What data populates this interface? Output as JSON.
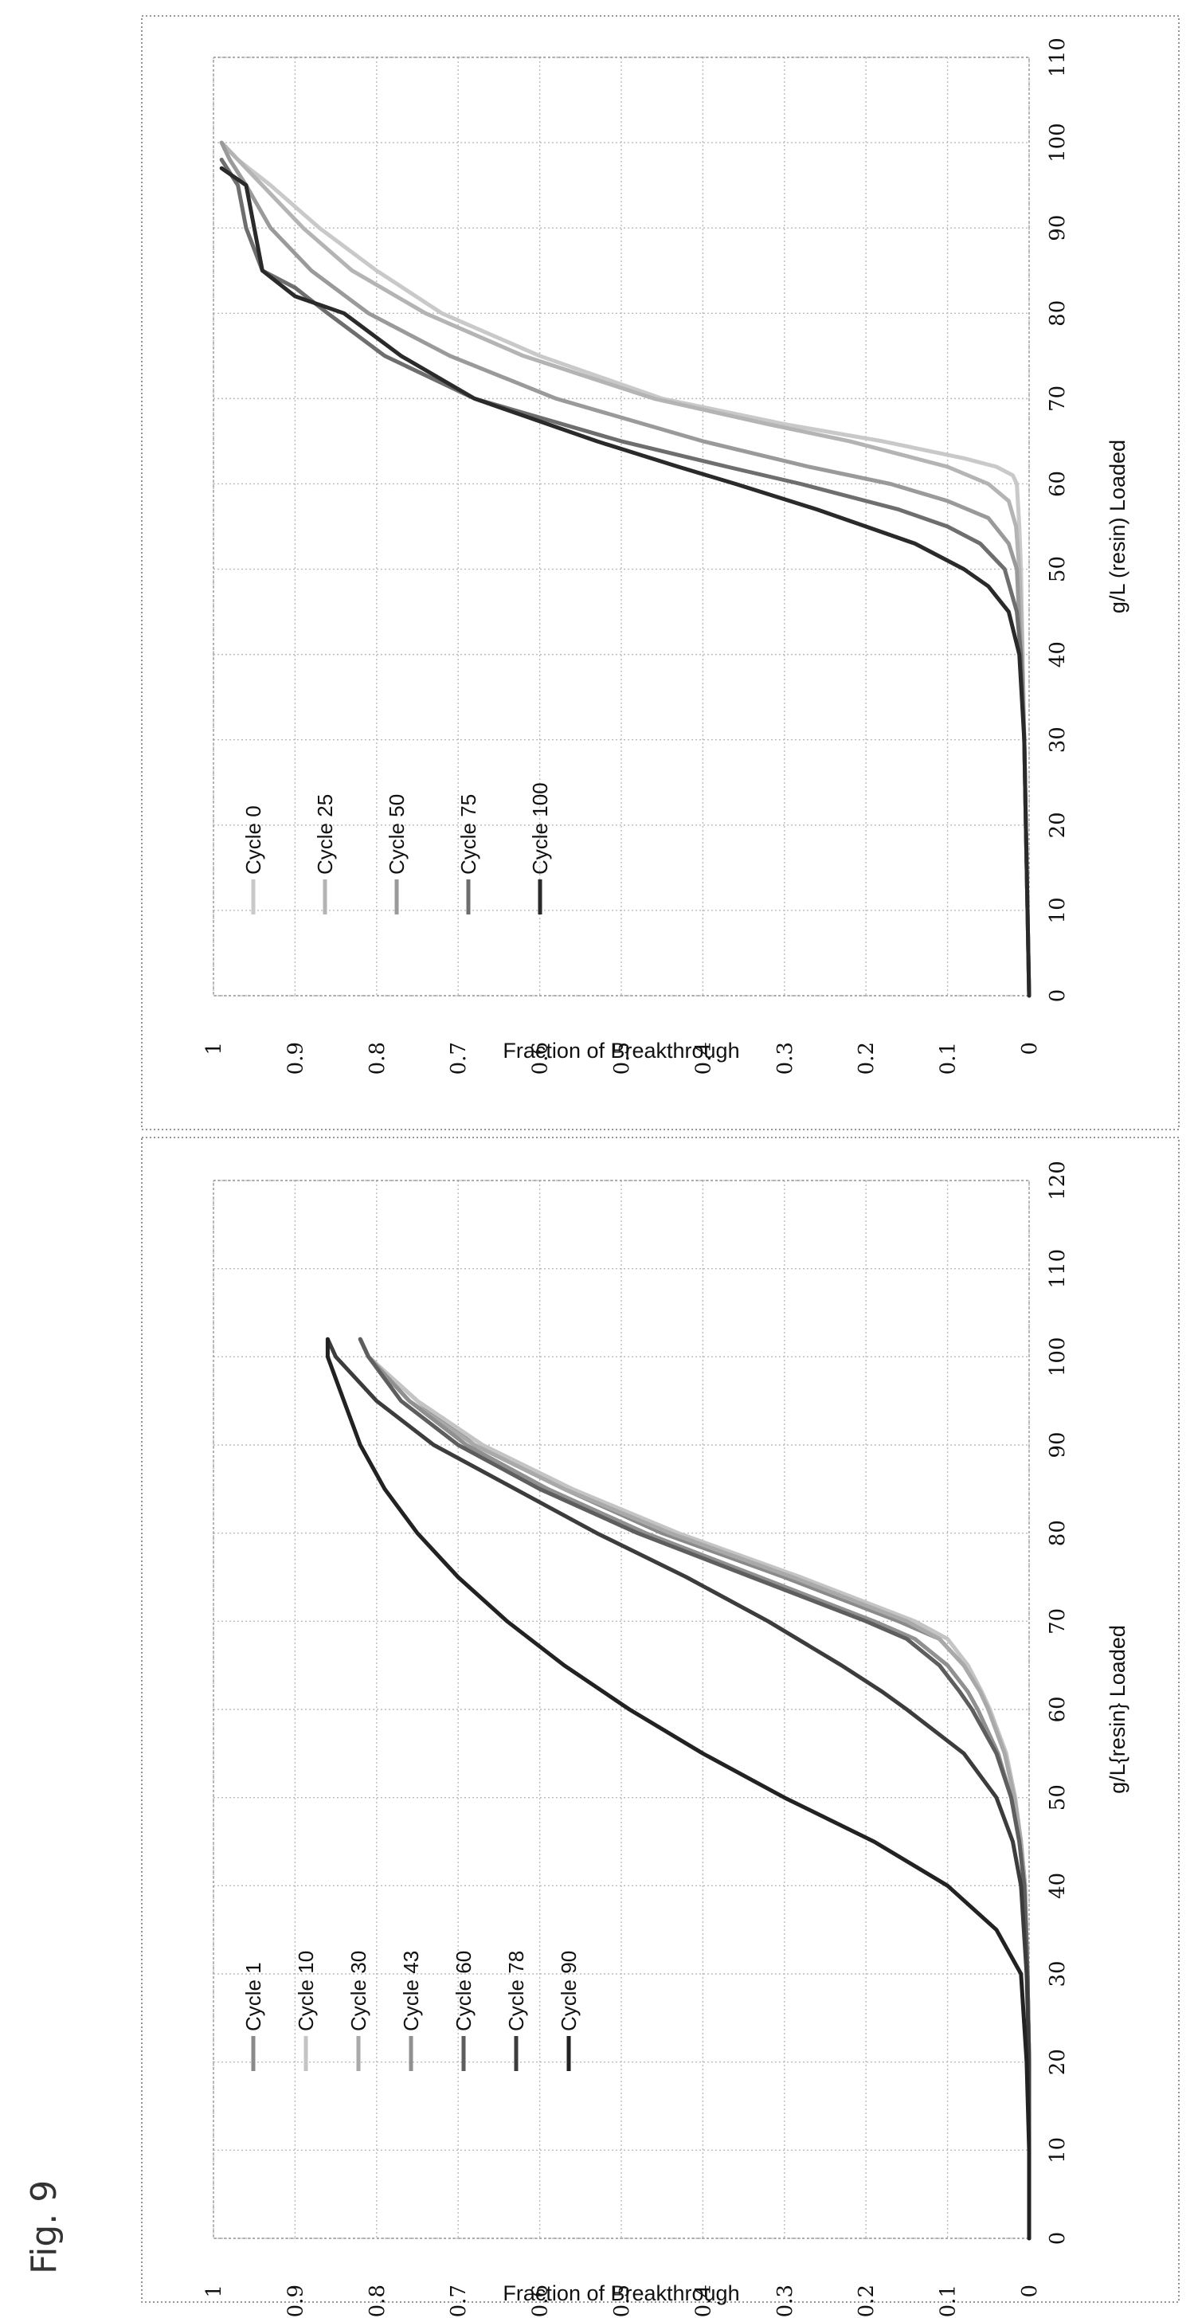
{
  "figure_label": "Fig. 9",
  "chart_data": [
    {
      "type": "line",
      "title": "",
      "xlabel": "g/L{resin} Loaded",
      "ylabel": "Fraction of Breakthrough",
      "xlim": [
        0,
        120
      ],
      "ylim": [
        0,
        1
      ],
      "x_ticks": [
        "0",
        "10",
        "20",
        "30",
        "40",
        "50",
        "60",
        "70",
        "80",
        "90",
        "100",
        "110",
        "120"
      ],
      "y_ticks": [
        "0",
        "0.1",
        "0.2",
        "0.3",
        "0.4",
        "0.5",
        "0.6",
        "0.7",
        "0.8",
        "0.9",
        "1"
      ],
      "grid": true,
      "legend_position": "top-left",
      "series": [
        {
          "name": "Cycle 1",
          "color": "#8a8a8a",
          "width": 5,
          "x": [
            0,
            10,
            20,
            30,
            40,
            45,
            50,
            55,
            60,
            62,
            65,
            68,
            70,
            75,
            80,
            85,
            90,
            95,
            100,
            102
          ],
          "y": [
            0,
            0,
            0,
            0.002,
            0.005,
            0.01,
            0.018,
            0.03,
            0.05,
            0.06,
            0.08,
            0.11,
            0.16,
            0.3,
            0.45,
            0.57,
            0.68,
            0.75,
            0.81,
            0.82
          ]
        },
        {
          "name": "Cycle 10",
          "color": "#c4c4c4",
          "width": 5,
          "x": [
            0,
            10,
            20,
            30,
            40,
            45,
            50,
            55,
            60,
            62,
            65,
            68,
            70,
            75,
            80,
            85,
            90,
            95,
            100,
            102
          ],
          "y": [
            0,
            0,
            0,
            0.002,
            0.005,
            0.01,
            0.017,
            0.028,
            0.048,
            0.058,
            0.075,
            0.1,
            0.14,
            0.28,
            0.43,
            0.56,
            0.67,
            0.75,
            0.81,
            0.82
          ]
        },
        {
          "name": "Cycle 30",
          "color": "#a9a9a9",
          "width": 5,
          "x": [
            0,
            10,
            20,
            30,
            40,
            45,
            50,
            55,
            60,
            62,
            65,
            68,
            70,
            75,
            80,
            85,
            90,
            95,
            100,
            102
          ],
          "y": [
            0,
            0,
            0,
            0.002,
            0.005,
            0.01,
            0.018,
            0.03,
            0.05,
            0.06,
            0.08,
            0.11,
            0.15,
            0.29,
            0.44,
            0.57,
            0.68,
            0.76,
            0.81,
            0.82
          ]
        },
        {
          "name": "Cycle 43",
          "color": "#909090",
          "width": 5,
          "x": [
            0,
            10,
            20,
            30,
            40,
            45,
            50,
            55,
            60,
            62,
            65,
            68,
            70,
            75,
            80,
            85,
            90,
            95,
            100,
            102
          ],
          "y": [
            0,
            0,
            0,
            0.002,
            0.006,
            0.012,
            0.022,
            0.038,
            0.063,
            0.075,
            0.1,
            0.14,
            0.19,
            0.33,
            0.47,
            0.59,
            0.69,
            0.76,
            0.81,
            0.82
          ]
        },
        {
          "name": "Cycle 60",
          "color": "#5e5e5e",
          "width": 5,
          "x": [
            0,
            10,
            20,
            30,
            40,
            45,
            50,
            55,
            60,
            62,
            65,
            68,
            70,
            75,
            80,
            85,
            90,
            95,
            100,
            102
          ],
          "y": [
            0,
            0,
            0,
            0.002,
            0.006,
            0.012,
            0.022,
            0.04,
            0.07,
            0.085,
            0.11,
            0.15,
            0.2,
            0.34,
            0.48,
            0.6,
            0.7,
            0.77,
            0.81,
            0.82
          ]
        },
        {
          "name": "Cycle 78",
          "color": "#3c3c3c",
          "width": 5,
          "x": [
            0,
            10,
            20,
            30,
            40,
            45,
            50,
            55,
            60,
            62,
            65,
            70,
            75,
            80,
            85,
            90,
            95,
            100,
            102
          ],
          "y": [
            0,
            0,
            0,
            0.003,
            0.01,
            0.02,
            0.04,
            0.08,
            0.15,
            0.18,
            0.23,
            0.32,
            0.42,
            0.53,
            0.63,
            0.73,
            0.8,
            0.85,
            0.86
          ]
        },
        {
          "name": "Cycle 90",
          "color": "#222222",
          "width": 5,
          "x": [
            0,
            10,
            20,
            30,
            35,
            40,
            45,
            50,
            55,
            60,
            65,
            70,
            75,
            80,
            85,
            90,
            95,
            100,
            102
          ],
          "y": [
            0,
            0,
            0.003,
            0.01,
            0.04,
            0.1,
            0.19,
            0.3,
            0.4,
            0.49,
            0.57,
            0.64,
            0.7,
            0.75,
            0.79,
            0.82,
            0.84,
            0.86,
            0.86
          ]
        }
      ]
    },
    {
      "type": "line",
      "title": "",
      "xlabel": "g/L (resin) Loaded",
      "ylabel": "Fraction of Breakthrough",
      "xlim": [
        0,
        110
      ],
      "ylim": [
        0,
        1
      ],
      "x_ticks": [
        "0",
        "10",
        "20",
        "30",
        "40",
        "50",
        "60",
        "70",
        "80",
        "90",
        "100",
        "110"
      ],
      "y_ticks": [
        "0",
        "0.1",
        "0.2",
        "0.3",
        "0.4",
        "0.5",
        "0.6",
        "0.7",
        "0.8",
        "0.9",
        "1"
      ],
      "grid": true,
      "legend_position": "top-left",
      "series": [
        {
          "name": "Cycle 0",
          "color": "#c9c9c9",
          "width": 5,
          "x": [
            0,
            10,
            20,
            30,
            40,
            50,
            55,
            60,
            61,
            62,
            63,
            65,
            67,
            70,
            75,
            80,
            85,
            90,
            95,
            98,
            100
          ],
          "y": [
            0,
            0.002,
            0.004,
            0.006,
            0.008,
            0.01,
            0.012,
            0.015,
            0.02,
            0.04,
            0.08,
            0.18,
            0.3,
            0.45,
            0.6,
            0.72,
            0.8,
            0.87,
            0.93,
            0.97,
            0.99
          ]
        },
        {
          "name": "Cycle 25",
          "color": "#b4b4b4",
          "width": 5,
          "x": [
            0,
            10,
            20,
            30,
            40,
            50,
            55,
            58,
            60,
            62,
            65,
            67,
            70,
            75,
            80,
            85,
            90,
            95,
            98,
            100
          ],
          "y": [
            0,
            0.002,
            0.004,
            0.006,
            0.008,
            0.012,
            0.016,
            0.025,
            0.05,
            0.1,
            0.22,
            0.32,
            0.46,
            0.62,
            0.74,
            0.83,
            0.89,
            0.94,
            0.97,
            0.99
          ]
        },
        {
          "name": "Cycle 50",
          "color": "#9a9a9a",
          "width": 5,
          "x": [
            0,
            10,
            20,
            30,
            40,
            50,
            53,
            56,
            58,
            60,
            62,
            65,
            70,
            75,
            80,
            85,
            90,
            95,
            98,
            100
          ],
          "y": [
            0,
            0.002,
            0.004,
            0.006,
            0.01,
            0.015,
            0.025,
            0.05,
            0.1,
            0.17,
            0.27,
            0.4,
            0.58,
            0.71,
            0.81,
            0.88,
            0.93,
            0.96,
            0.98,
            0.99
          ]
        },
        {
          "name": "Cycle 75",
          "color": "#6e6e6e",
          "width": 5,
          "x": [
            0,
            10,
            20,
            30,
            40,
            45,
            50,
            53,
            55,
            57,
            60,
            62,
            65,
            70,
            75,
            80,
            83,
            85,
            90,
            95,
            98
          ],
          "y": [
            0,
            0.002,
            0.004,
            0.006,
            0.01,
            0.015,
            0.03,
            0.06,
            0.1,
            0.16,
            0.28,
            0.37,
            0.5,
            0.68,
            0.79,
            0.86,
            0.9,
            0.94,
            0.96,
            0.97,
            0.99
          ]
        },
        {
          "name": "Cycle 100",
          "color": "#2a2a2a",
          "width": 5,
          "x": [
            0,
            10,
            20,
            30,
            40,
            45,
            48,
            50,
            53,
            55,
            57,
            60,
            62,
            65,
            70,
            75,
            80,
            82,
            85,
            90,
            95,
            97
          ],
          "y": [
            0,
            0.002,
            0.004,
            0.006,
            0.012,
            0.025,
            0.05,
            0.08,
            0.14,
            0.2,
            0.26,
            0.36,
            0.43,
            0.53,
            0.68,
            0.77,
            0.84,
            0.9,
            0.94,
            0.95,
            0.96,
            0.99
          ]
        }
      ]
    }
  ]
}
